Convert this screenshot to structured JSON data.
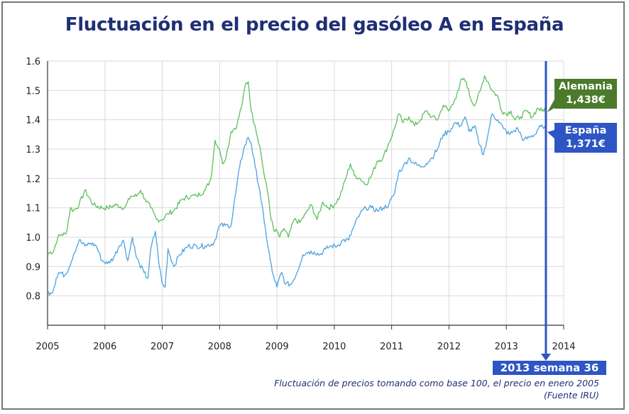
{
  "title": "Fluctuación en el precio del gasóleo A en España",
  "note": {
    "line1": "Fluctuación de precios tomando como base 100, el precio en enero 2005",
    "line2": "(Fuente IRU)"
  },
  "labels": {
    "germany_name": "Alemania",
    "germany_price": "1,438€",
    "spain_name": "España",
    "spain_price": "1,371€",
    "marker": "2013 semana 36"
  },
  "colors": {
    "title": "#1f2f76",
    "germany": "#5cc05c",
    "spain": "#4aa3e0",
    "germany_tag": "#4b7a2b",
    "spain_tag": "#2d55c4",
    "marker": "#2d55c4",
    "grid": "#d9d9d9"
  },
  "chart_data": {
    "type": "line",
    "xlim": [
      2005,
      2014
    ],
    "ylim": [
      0.7,
      1.6
    ],
    "x_ticks": [
      "2005",
      "2006",
      "2007",
      "2008",
      "2009",
      "2010",
      "2011",
      "2012",
      "2013",
      "2014"
    ],
    "y_ticks": [
      "0.8",
      "0.9",
      "1.0",
      "1.1",
      "1.2",
      "1.3",
      "1.4",
      "1.5",
      "1.6"
    ],
    "marker_x": 2013.69,
    "series": [
      {
        "name": "Alemania",
        "x": [
          2005.0,
          2005.05,
          2005.1,
          2005.18,
          2005.25,
          2005.32,
          2005.4,
          2005.45,
          2005.55,
          2005.65,
          2005.8,
          2005.95,
          2006.05,
          2006.2,
          2006.35,
          2006.45,
          2006.55,
          2006.62,
          2006.7,
          2006.8,
          2006.9,
          2007.0,
          2007.1,
          2007.2,
          2007.35,
          2007.5,
          2007.6,
          2007.75,
          2007.85,
          2007.92,
          2008.0,
          2008.05,
          2008.12,
          2008.2,
          2008.3,
          2008.4,
          2008.45,
          2008.5,
          2008.55,
          2008.62,
          2008.7,
          2008.78,
          2008.85,
          2008.9,
          2008.95,
          2009.0,
          2009.05,
          2009.12,
          2009.2,
          2009.3,
          2009.4,
          2009.5,
          2009.6,
          2009.7,
          2009.8,
          2009.9,
          2010.0,
          2010.1,
          2010.2,
          2010.28,
          2010.35,
          2010.45,
          2010.55,
          2010.65,
          2010.75,
          2010.85,
          2010.95,
          2011.05,
          2011.12,
          2011.2,
          2011.3,
          2011.4,
          2011.5,
          2011.6,
          2011.7,
          2011.8,
          2011.9,
          2012.0,
          2012.1,
          2012.17,
          2012.22,
          2012.3,
          2012.38,
          2012.45,
          2012.55,
          2012.62,
          2012.68,
          2012.75,
          2012.85,
          2012.92,
          2013.0,
          2013.08,
          2013.15,
          2013.25,
          2013.35,
          2013.45,
          2013.55,
          2013.62,
          2013.69
        ],
        "values": [
          0.94,
          0.95,
          0.95,
          1.0,
          1.01,
          1.01,
          1.1,
          1.09,
          1.11,
          1.16,
          1.11,
          1.1,
          1.1,
          1.11,
          1.1,
          1.14,
          1.14,
          1.16,
          1.13,
          1.1,
          1.06,
          1.06,
          1.08,
          1.09,
          1.13,
          1.14,
          1.14,
          1.16,
          1.2,
          1.33,
          1.3,
          1.25,
          1.28,
          1.36,
          1.38,
          1.46,
          1.52,
          1.53,
          1.43,
          1.38,
          1.31,
          1.21,
          1.14,
          1.06,
          1.02,
          1.02,
          1.0,
          1.03,
          1.0,
          1.06,
          1.05,
          1.08,
          1.11,
          1.06,
          1.12,
          1.1,
          1.11,
          1.14,
          1.2,
          1.25,
          1.21,
          1.2,
          1.18,
          1.21,
          1.26,
          1.27,
          1.32,
          1.37,
          1.42,
          1.39,
          1.41,
          1.38,
          1.4,
          1.43,
          1.41,
          1.4,
          1.45,
          1.43,
          1.47,
          1.5,
          1.54,
          1.53,
          1.47,
          1.45,
          1.5,
          1.55,
          1.53,
          1.5,
          1.48,
          1.43,
          1.42,
          1.43,
          1.4,
          1.41,
          1.43,
          1.41,
          1.44,
          1.43,
          1.44
        ]
      },
      {
        "name": "España",
        "x": [
          2005.0,
          2005.05,
          2005.1,
          2005.15,
          2005.2,
          2005.3,
          2005.38,
          2005.45,
          2005.55,
          2005.65,
          2005.75,
          2005.85,
          2005.95,
          2006.05,
          2006.15,
          2006.25,
          2006.32,
          2006.4,
          2006.48,
          2006.55,
          2006.6,
          2006.68,
          2006.75,
          2006.8,
          2006.88,
          2006.95,
          2007.0,
          2007.05,
          2007.1,
          2007.2,
          2007.3,
          2007.45,
          2007.6,
          2007.75,
          2007.9,
          2008.0,
          2008.1,
          2008.2,
          2008.28,
          2008.35,
          2008.42,
          2008.5,
          2008.55,
          2008.62,
          2008.7,
          2008.78,
          2008.85,
          2008.92,
          2009.0,
          2009.08,
          2009.15,
          2009.25,
          2009.35,
          2009.45,
          2009.55,
          2009.65,
          2009.75,
          2009.85,
          2009.95,
          2010.05,
          2010.15,
          2010.25,
          2010.35,
          2010.45,
          2010.55,
          2010.65,
          2010.75,
          2010.85,
          2010.95,
          2011.05,
          2011.12,
          2011.2,
          2011.3,
          2011.4,
          2011.5,
          2011.6,
          2011.7,
          2011.8,
          2011.9,
          2012.0,
          2012.1,
          2012.2,
          2012.28,
          2012.35,
          2012.45,
          2012.52,
          2012.6,
          2012.68,
          2012.75,
          2012.85,
          2012.95,
          2013.05,
          2013.12,
          2013.2,
          2013.3,
          2013.4,
          2013.5,
          2013.58,
          2013.65,
          2013.69
        ],
        "values": [
          0.81,
          0.81,
          0.82,
          0.86,
          0.88,
          0.87,
          0.9,
          0.94,
          0.99,
          0.97,
          0.98,
          0.97,
          0.92,
          0.91,
          0.93,
          0.97,
          0.99,
          0.92,
          1.0,
          0.93,
          0.91,
          0.88,
          0.86,
          0.96,
          1.02,
          0.9,
          0.84,
          0.83,
          0.96,
          0.9,
          0.94,
          0.97,
          0.97,
          0.97,
          0.98,
          1.04,
          1.04,
          1.04,
          1.15,
          1.24,
          1.3,
          1.34,
          1.32,
          1.24,
          1.16,
          1.05,
          0.96,
          0.88,
          0.83,
          0.88,
          0.84,
          0.84,
          0.88,
          0.94,
          0.95,
          0.95,
          0.94,
          0.96,
          0.97,
          0.97,
          0.99,
          0.99,
          1.04,
          1.08,
          1.1,
          1.1,
          1.09,
          1.1,
          1.11,
          1.15,
          1.22,
          1.24,
          1.27,
          1.25,
          1.24,
          1.25,
          1.27,
          1.3,
          1.35,
          1.36,
          1.39,
          1.38,
          1.41,
          1.36,
          1.38,
          1.32,
          1.28,
          1.35,
          1.42,
          1.4,
          1.37,
          1.35,
          1.36,
          1.37,
          1.33,
          1.34,
          1.35,
          1.38,
          1.37,
          1.37
        ]
      }
    ]
  }
}
